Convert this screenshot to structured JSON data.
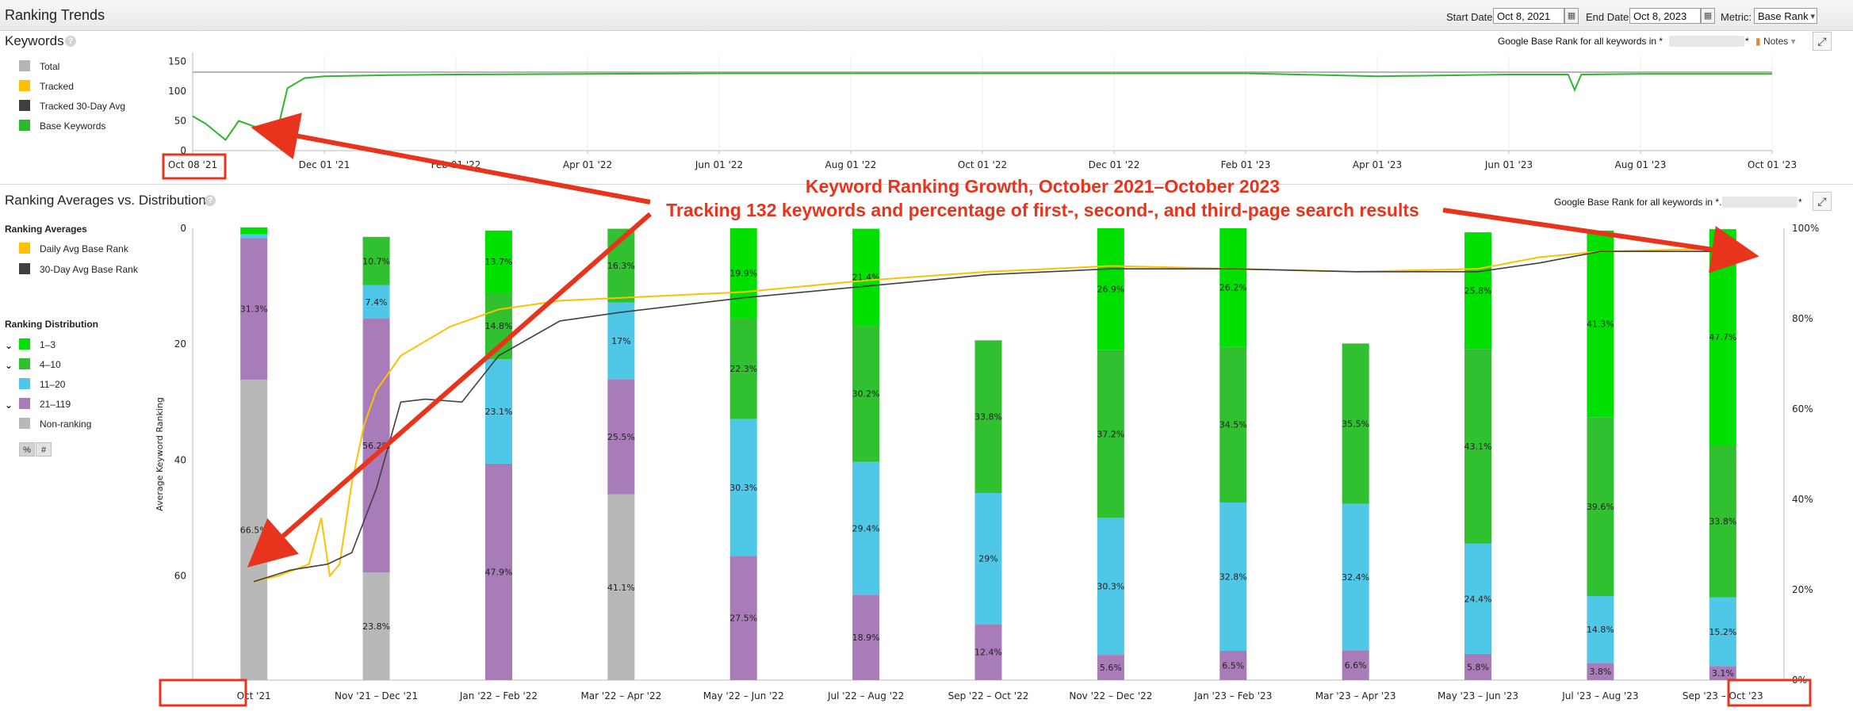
{
  "header": {
    "title": "Ranking Trends",
    "start_date_label": "Start Date:",
    "start_date": "Oct 8, 2021",
    "end_date_label": "End Date:",
    "end_date": "Oct 8, 2023",
    "metric_label": "Metric:",
    "metric_value": "Base Rank"
  },
  "keywords_section": {
    "title": "Keywords",
    "caption": "Google Base Rank for all keywords in *",
    "caption_end": "*",
    "notes_label": "Notes",
    "legend": [
      {
        "label": "Total",
        "color": "#b5b5b5"
      },
      {
        "label": "Tracked",
        "color": "#ffc000"
      },
      {
        "label": "Tracked 30-Day Avg",
        "color": "#404040"
      },
      {
        "label": "Base Keywords",
        "color": "#2cb82c"
      }
    ]
  },
  "averages_section": {
    "title": "Ranking Averages vs. Distribution",
    "caption": "Google Base Rank for all keywords in *.",
    "caption_end": "*",
    "averages_heading": "Ranking Averages",
    "averages_legend": [
      {
        "label": "Daily Avg Base Rank",
        "color": "#ffc000"
      },
      {
        "label": "30-Day Avg Base Rank",
        "color": "#404040"
      }
    ],
    "distribution_heading": "Ranking Distribution",
    "distribution_legend": [
      {
        "label": "1–3",
        "color": "#00e000"
      },
      {
        "label": "4–10",
        "color": "#30c030"
      },
      {
        "label": "11–20",
        "color": "#4fc8e8"
      },
      {
        "label": "21–119",
        "color": "#a87cb8"
      },
      {
        "label": "Non-ranking",
        "color": "#b8b8b8"
      }
    ],
    "toggle_percent": "%",
    "toggle_count": "#",
    "y_axis_label": "Average Keyword Ranking"
  },
  "annotation": {
    "line1": "Keyword Ranking Growth, October 2021–October 2023",
    "line2": "Tracking 132 keywords and percentage of first-, second-, and third-page search results",
    "color": "#e8341c"
  },
  "chart_data": [
    {
      "type": "line",
      "title": "Keywords",
      "x_ticks": [
        "Oct 08 '21",
        "Dec 01 '21",
        "Feb 01 '22",
        "Apr 01 '22",
        "Jun 01 '22",
        "Aug 01 '22",
        "Oct 01 '22",
        "Dec 01 '22",
        "Feb 01 '23",
        "Apr 01 '23",
        "Jun 01 '23",
        "Aug 01 '23",
        "Oct 01 '23"
      ],
      "y_ticks": [
        0,
        50,
        100,
        150
      ],
      "ylim": [
        0,
        160
      ],
      "series": [
        {
          "name": "Total",
          "color": "#b5b5b5",
          "x": [
            0,
            1,
            2,
            3,
            4,
            5,
            6,
            7,
            8,
            9,
            10,
            11,
            12
          ],
          "values": [
            132,
            132,
            132,
            132,
            132,
            132,
            132,
            132,
            132,
            132,
            132,
            132,
            132
          ]
        },
        {
          "name": "Base Keywords",
          "color": "#2cb82c",
          "x": [
            0,
            0.1,
            0.25,
            0.35,
            0.5,
            0.65,
            0.72,
            0.85,
            1.0,
            1.5,
            2,
            3,
            4,
            5,
            6,
            7,
            8,
            9,
            10,
            10.45,
            10.5,
            10.55,
            11,
            12
          ],
          "values": [
            58,
            45,
            18,
            50,
            38,
            40,
            105,
            122,
            125,
            127,
            128,
            129,
            130,
            130,
            130,
            130,
            130,
            125,
            128,
            128,
            102,
            128,
            129,
            129
          ]
        }
      ]
    },
    {
      "type": "bar",
      "title": "Ranking Averages vs. Distribution",
      "ylabel": "Average Keyword Ranking",
      "categories": [
        "Oct '21",
        "Nov '21 – Dec '21",
        "Jan '22 – Feb '22",
        "Mar '22 – Apr '22",
        "May '22 – Jun '22",
        "Jul '22 – Aug '22",
        "Sep '22 – Oct '22",
        "Nov '22 – Dec '22",
        "Jan '23 – Feb '23",
        "Mar '23 – Apr '23",
        "May '23 – Jun '23",
        "Jul '23 – Aug '23",
        "Sep '23 – Oct '23"
      ],
      "left_y_ticks": [
        0,
        20,
        40,
        60
      ],
      "left_ylim": [
        0,
        78
      ],
      "right_y_ticks": [
        "0%",
        "20%",
        "40%",
        "60%",
        "80%",
        "100%"
      ],
      "stacks": [
        {
          "name": "1–3",
          "color": "#00e000",
          "values": [
            1.5,
            0,
            13.7,
            0,
            19.9,
            21.4,
            0,
            26.9,
            26.2,
            0,
            25.8,
            41.3,
            47.7
          ]
        },
        {
          "name": "4–10",
          "color": "#30c030",
          "values": [
            0,
            10.7,
            14.8,
            16.3,
            22.3,
            30.2,
            33.8,
            37.2,
            34.5,
            35.5,
            43.1,
            39.6,
            33.8
          ]
        },
        {
          "name": "11–20",
          "color": "#4fc8e8",
          "values": [
            0.9,
            7.4,
            23.1,
            17,
            30.3,
            29.4,
            29,
            30.3,
            32.8,
            32.4,
            24.4,
            14.8,
            15.2
          ]
        },
        {
          "name": "21–119",
          "color": "#a87cb8",
          "values": [
            31.3,
            56.2,
            47.9,
            25.5,
            27.5,
            18.9,
            12.4,
            5.6,
            6.5,
            6.6,
            5.8,
            3.8,
            3.1
          ]
        },
        {
          "name": "Non-ranking",
          "color": "#b8b8b8",
          "values": [
            66.5,
            23.8,
            0,
            41.1,
            0,
            0,
            0,
            0,
            0,
            0,
            0,
            0,
            0
          ]
        }
      ],
      "bar_labels": [
        [
          "",
          "",
          "",
          "31.3%",
          "66.5%"
        ],
        [
          "",
          "10.7%",
          "7.4%",
          "56.2%",
          "23.8%"
        ],
        [
          "13.7%",
          "14.8%",
          "23.1%",
          "47.9%",
          ""
        ],
        [
          "",
          "16.3%",
          "17%",
          "25.5%",
          "41.1%"
        ],
        [
          "19.9%",
          "22.3%",
          "30.3%",
          "27.5%",
          ""
        ],
        [
          "21.4%",
          "30.2%",
          "29.4%",
          "18.9%",
          ""
        ],
        [
          "",
          "33.8%",
          "29%",
          "12.4%",
          ""
        ],
        [
          "26.9%",
          "37.2%",
          "30.3%",
          "5.6%",
          ""
        ],
        [
          "26.2%",
          "34.5%",
          "32.8%",
          "6.5%",
          ""
        ],
        [
          "",
          "35.5%",
          "32.4%",
          "6.6%",
          ""
        ],
        [
          "25.8%",
          "43.1%",
          "24.4%",
          "5.8%",
          ""
        ],
        [
          "41.3%",
          "39.6%",
          "14.8%",
          "3.8%",
          ""
        ],
        [
          "47.7%",
          "33.8%",
          "15.2%",
          "3.1%",
          ""
        ]
      ],
      "lines": [
        {
          "name": "Daily Avg Base Rank",
          "color": "#ffc000",
          "x": [
            0,
            0.2,
            0.45,
            0.55,
            0.62,
            0.7,
            0.8,
            0.9,
            1.0,
            1.2,
            1.6,
            2.0,
            2.5,
            3.0,
            4.0,
            5.0,
            6.0,
            7.0,
            8.0,
            9.0,
            10.0,
            10.5,
            11.0,
            12.0
          ],
          "values": [
            61,
            60,
            58,
            50,
            60,
            58,
            44,
            34,
            28,
            22,
            17,
            14,
            12.5,
            12,
            11,
            9,
            7.5,
            6.5,
            7,
            7.5,
            7,
            5,
            4,
            3.5
          ]
        },
        {
          "name": "30-Day Avg Base Rank",
          "color": "#404040",
          "x": [
            0,
            0.3,
            0.6,
            0.8,
            1.0,
            1.2,
            1.4,
            1.7,
            2.0,
            2.5,
            3.0,
            4.0,
            5.0,
            6.0,
            7.0,
            8.0,
            9.0,
            10.0,
            10.5,
            11.0,
            12.0
          ],
          "values": [
            61,
            59,
            58,
            56,
            45,
            30,
            29.5,
            30,
            22,
            16,
            14.5,
            12,
            10,
            8,
            7,
            7,
            7.5,
            7.5,
            6,
            4,
            4
          ]
        }
      ]
    }
  ]
}
